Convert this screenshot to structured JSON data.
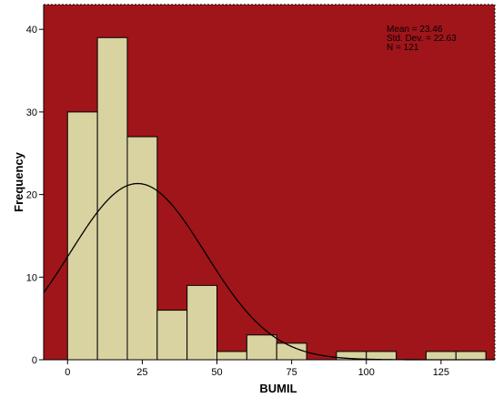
{
  "chart_data": {
    "type": "histogram",
    "xlabel": "BUMIL",
    "ylabel": "Frequency",
    "xlim": [
      -8,
      143
    ],
    "ylim": [
      0,
      43
    ],
    "x_ticks": [
      0,
      25,
      50,
      75,
      100,
      125
    ],
    "y_ticks": [
      0,
      10,
      20,
      30,
      40
    ],
    "bin_width": 10,
    "bins": [
      {
        "start": 0,
        "end": 10,
        "count": 30
      },
      {
        "start": 10,
        "end": 20,
        "count": 39
      },
      {
        "start": 20,
        "end": 30,
        "count": 27
      },
      {
        "start": 30,
        "end": 40,
        "count": 6
      },
      {
        "start": 40,
        "end": 50,
        "count": 9
      },
      {
        "start": 50,
        "end": 60,
        "count": 1
      },
      {
        "start": 60,
        "end": 70,
        "count": 3
      },
      {
        "start": 70,
        "end": 80,
        "count": 2
      },
      {
        "start": 80,
        "end": 90,
        "count": 0
      },
      {
        "start": 90,
        "end": 100,
        "count": 1
      },
      {
        "start": 100,
        "end": 110,
        "count": 1
      },
      {
        "start": 110,
        "end": 120,
        "count": 0
      },
      {
        "start": 120,
        "end": 130,
        "count": 1
      },
      {
        "start": 130,
        "end": 140,
        "count": 1
      }
    ],
    "normal_curve": {
      "mean": 23.46,
      "std_dev": 22.63,
      "n": 121
    },
    "stats": {
      "mean_text": "Mean = 23.46",
      "std_text": "Std. Dev. = 22.63",
      "n_text": "N = 121"
    },
    "grid": false,
    "colors": {
      "plot_background": "#a0151a",
      "bar_fill": "#d8d3a0",
      "bar_stroke": "#000000",
      "curve": "#000000",
      "axis": "#000000"
    }
  }
}
